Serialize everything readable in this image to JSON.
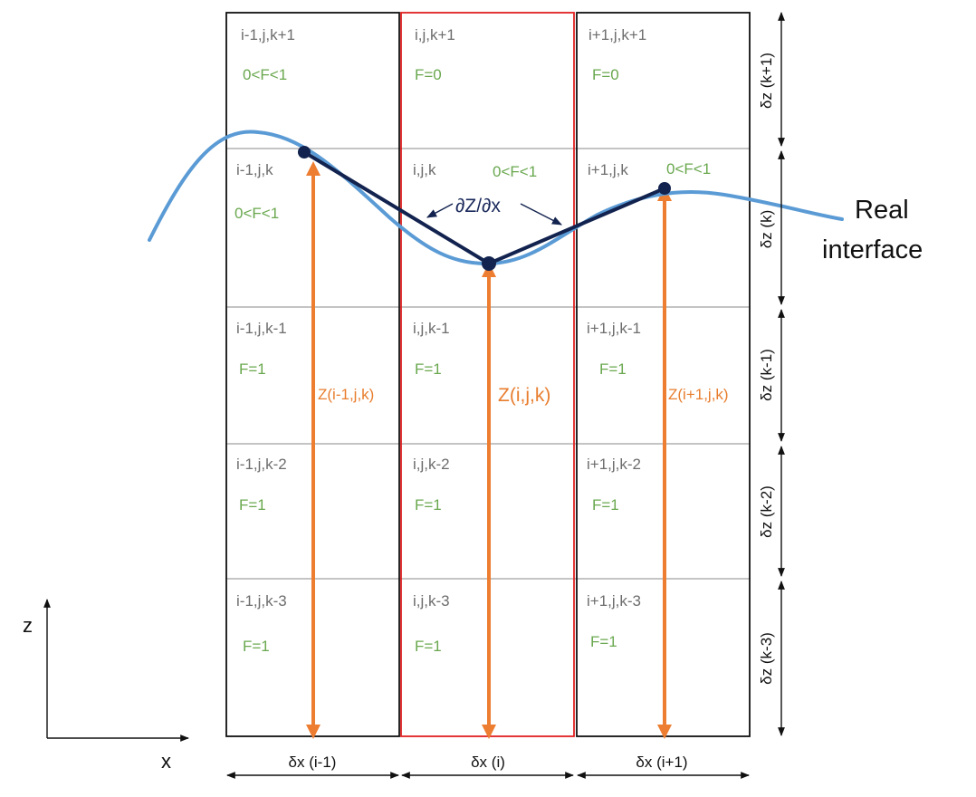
{
  "cells": [
    {
      "label": "i-1,j,k+1",
      "f": "0<F<1"
    },
    {
      "label": "i,j,k+1",
      "f": "F=0"
    },
    {
      "label": "i+1,j,k+1",
      "f": "F=0"
    },
    {
      "label": "i-1,j,k",
      "f": "0<F<1"
    },
    {
      "label": "i,j,k",
      "f": "0<F<1"
    },
    {
      "label": "i+1,j,k",
      "f": "0<F<1"
    },
    {
      "label": "i-1,j,k-1",
      "f": "F=1"
    },
    {
      "label": "i,j,k-1",
      "f": "F=1"
    },
    {
      "label": "i+1,j,k-1",
      "f": "F=1"
    },
    {
      "label": "i-1,j,k-2",
      "f": "F=1"
    },
    {
      "label": "i,j,k-2",
      "f": "F=1"
    },
    {
      "label": "i+1,j,k-2",
      "f": "F=1"
    },
    {
      "label": "i-1,j,k-3",
      "f": "F=1"
    },
    {
      "label": "i,j,k-3",
      "f": "F=1"
    },
    {
      "label": "i+1,j,k-3",
      "f": "F=1"
    }
  ],
  "row_heights": [
    "δz (k+1)",
    "δz (k)",
    "δz (k-1)",
    "δz (k-2)",
    "δz (k-3)"
  ],
  "col_widths": [
    "δx (i-1)",
    "δx (i)",
    "δx (i+1)"
  ],
  "heights": [
    "Z(i-1,j,k)",
    "Z(i,j,k)",
    "Z(i+1,j,k)"
  ],
  "gradient_label": "∂Z/∂x",
  "interface_label": [
    "Real",
    "interface"
  ],
  "axes": {
    "z": "z",
    "x": "x"
  },
  "colors": {
    "interface_curve": "#5b9bd5",
    "reconstruction": "#13234f",
    "height_arrows": "#ed7d31",
    "center_column": "#e02020",
    "volume_fraction_text": "#6aa84f"
  }
}
